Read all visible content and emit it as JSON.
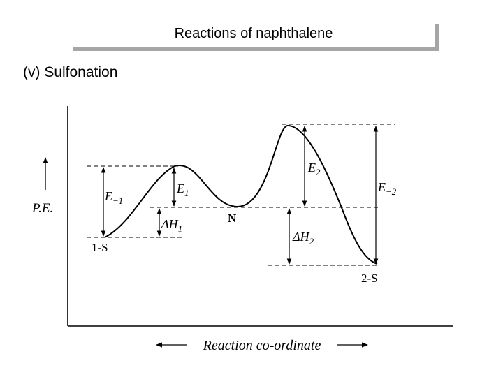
{
  "slide": {
    "title": "Reactions of naphthalene",
    "subtitle": "(v) Sulfonation"
  },
  "diagram": {
    "y_axis_label": "P.E.",
    "x_axis_label": "Reaction co-ordinate",
    "points": {
      "start_label": "1-S",
      "intermediate_label": "N",
      "end_label": "2-S"
    },
    "energies": {
      "e_minus1": {
        "main": "E",
        "sub": "−1"
      },
      "e1": {
        "main": "E",
        "sub": "1"
      },
      "dh1": {
        "main": "ΔH",
        "sub": "1"
      },
      "e2": {
        "main": "E",
        "sub": "2"
      },
      "dh2": {
        "main": "ΔH",
        "sub": "2"
      },
      "e_minus2": {
        "main": "E",
        "sub": "−2"
      }
    }
  }
}
